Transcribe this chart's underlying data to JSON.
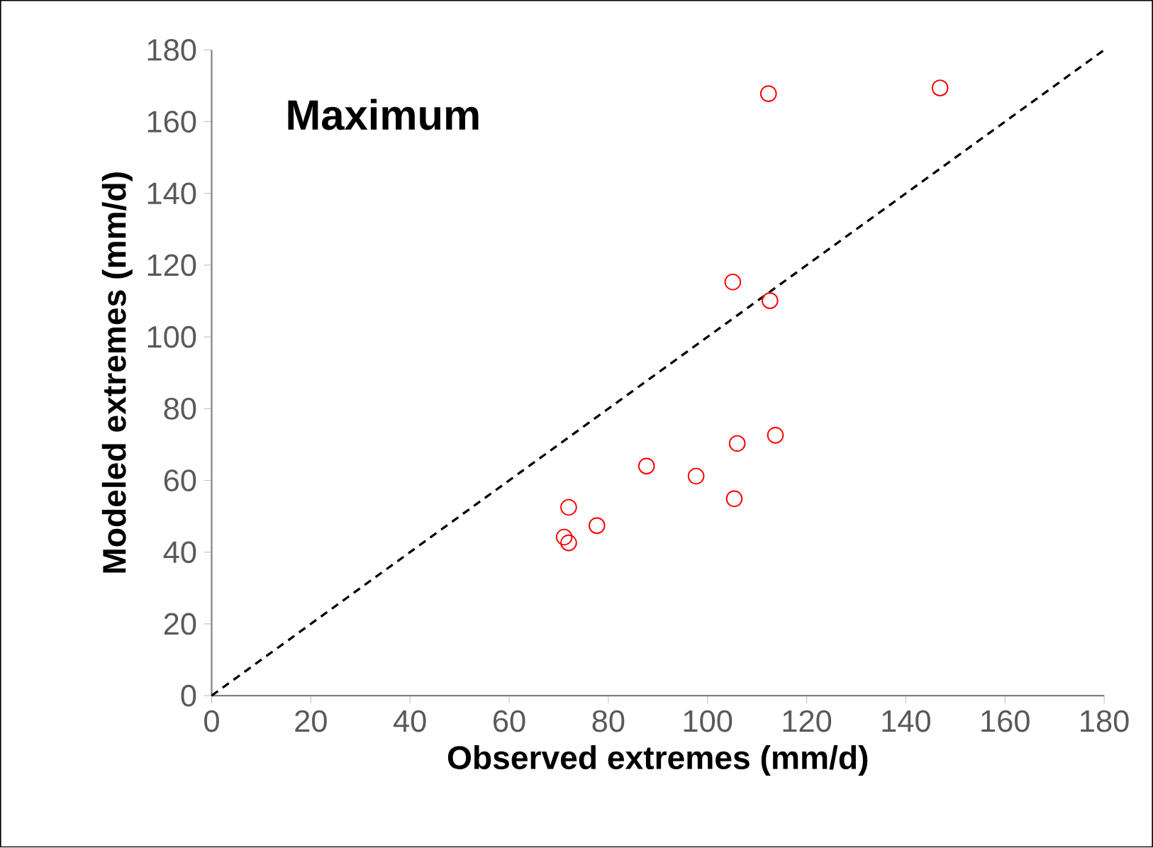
{
  "chart_data": {
    "type": "scatter",
    "title": "Maximum",
    "xlabel": "Observed extremes (mm/d)",
    "ylabel": "Modeled extremes (mm/d)",
    "xlim": [
      0,
      180
    ],
    "ylim": [
      0,
      180
    ],
    "xticks": [
      0,
      20,
      40,
      60,
      80,
      100,
      120,
      140,
      160,
      180
    ],
    "yticks": [
      0,
      20,
      40,
      60,
      80,
      100,
      120,
      140,
      160,
      180
    ],
    "grid": false,
    "series": [
      {
        "color": "#ff0000",
        "marker": "circle",
        "x": [
          112.3,
          146.9,
          105.1,
          112.6,
          106,
          113.7,
          87.7,
          97.7,
          105.4,
          72,
          77.7,
          71.1,
          72
        ],
        "values": [
          167.8,
          169.4,
          115.3,
          110.1,
          70.3,
          72.6,
          64,
          61.2,
          54.9,
          52.5,
          47.4,
          44.2,
          42.6
        ]
      },
      {
        "type": "line",
        "color": "#000000",
        "marker": "none",
        "line_style": "dashed",
        "x": [
          0,
          180
        ],
        "values": [
          0,
          180
        ]
      }
    ]
  }
}
